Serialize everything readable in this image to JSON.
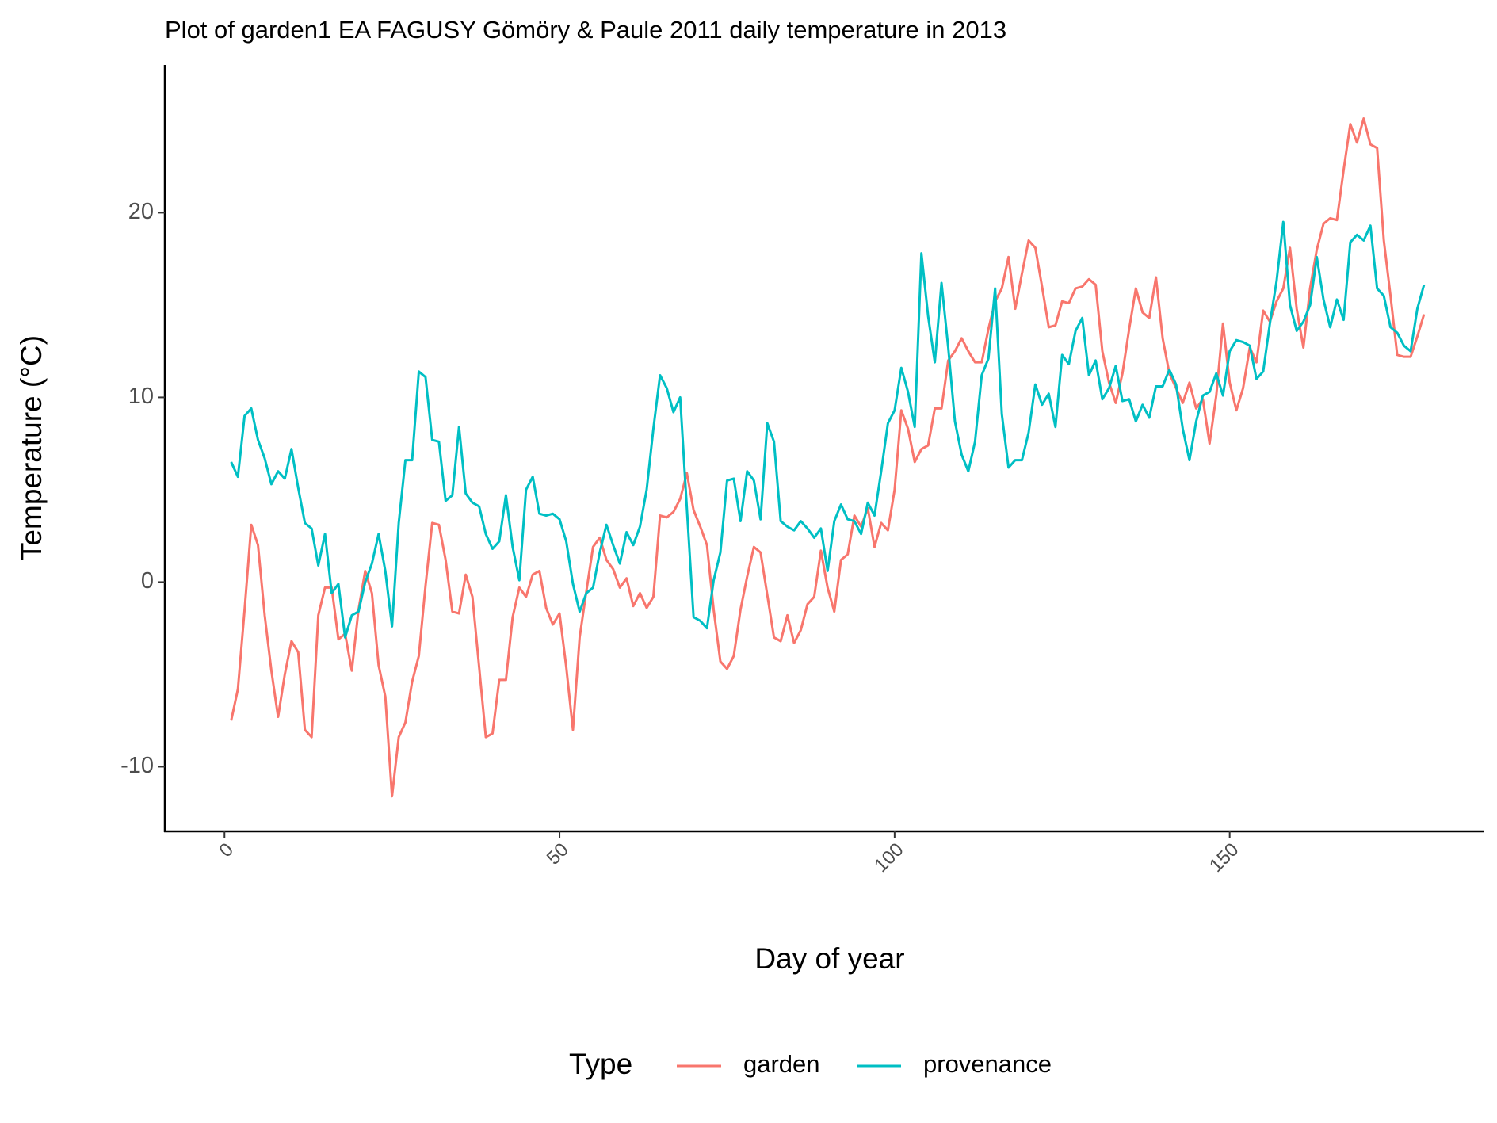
{
  "chart_data": {
    "type": "line",
    "title": "Plot of garden1 EA FAGUSY Gömöry & Paule 2011 daily temperature in 2013",
    "xlabel": "Day of year",
    "ylabel": "Temperature (°C)",
    "legend_title": "Type",
    "legend": "bottom",
    "x": [
      1,
      2,
      3,
      4,
      5,
      6,
      7,
      8,
      9,
      10,
      11,
      12,
      13,
      14,
      15,
      16,
      17,
      18,
      19,
      20,
      21,
      22,
      23,
      24,
      25,
      26,
      27,
      28,
      29,
      30,
      31,
      32,
      33,
      34,
      35,
      36,
      37,
      38,
      39,
      40,
      41,
      42,
      43,
      44,
      45,
      46,
      47,
      48,
      49,
      50,
      51,
      52,
      53,
      54,
      55,
      56,
      57,
      58,
      59,
      60,
      61,
      62,
      63,
      64,
      65,
      66,
      67,
      68,
      69,
      70,
      71,
      72,
      73,
      74,
      75,
      76,
      77,
      78,
      79,
      80,
      81,
      82,
      83,
      84,
      85,
      86,
      87,
      88,
      89,
      90,
      91,
      92,
      93,
      94,
      95,
      96,
      97,
      98,
      99,
      100,
      101,
      102,
      103,
      104,
      105,
      106,
      107,
      108,
      109,
      110,
      111,
      112,
      113,
      114,
      115,
      116,
      117,
      118,
      119,
      120,
      121,
      122,
      123,
      124,
      125,
      126,
      127,
      128,
      129,
      130,
      131,
      132,
      133,
      134,
      135,
      136,
      137,
      138,
      139,
      140,
      141,
      142,
      143,
      144,
      145,
      146,
      147,
      148,
      149,
      150,
      151,
      152,
      153,
      154,
      155,
      156,
      157,
      158,
      159,
      160,
      161,
      162,
      163,
      164,
      165,
      166,
      167,
      168,
      169,
      170,
      171,
      172,
      173,
      174,
      175,
      176,
      177,
      178,
      179
    ],
    "series": [
      {
        "name": "garden",
        "color": "#f8766d",
        "values": [
          -7.5,
          -5.8,
          -1.5,
          3.1,
          2.0,
          -1.8,
          -4.8,
          -7.3,
          -5.0,
          -3.2,
          -3.8,
          -8.0,
          -8.4,
          -1.8,
          -0.3,
          -0.3,
          -3.1,
          -2.8,
          -4.8,
          -1.5,
          0.6,
          -0.6,
          -4.5,
          -6.2,
          -11.6,
          -8.4,
          -7.6,
          -5.4,
          -4.0,
          -0.2,
          3.2,
          3.1,
          1.2,
          -1.6,
          -1.7,
          0.4,
          -0.8,
          -4.6,
          -8.4,
          -8.2,
          -5.3,
          -5.3,
          -1.9,
          -0.3,
          -0.8,
          0.4,
          0.6,
          -1.4,
          -2.3,
          -1.7,
          -4.6,
          -8.0,
          -3.0,
          -0.5,
          1.9,
          2.4,
          1.2,
          0.7,
          -0.3,
          0.2,
          -1.3,
          -0.6,
          -1.4,
          -0.8,
          3.6,
          3.5,
          3.8,
          4.5,
          5.9,
          3.9,
          3.0,
          2.0,
          -1.5,
          -4.3,
          -4.7,
          -4.0,
          -1.5,
          0.3,
          1.9,
          1.6,
          -0.7,
          -3.0,
          -3.2,
          -1.8,
          -3.3,
          -2.6,
          -1.2,
          -0.8,
          1.7,
          -0.3,
          -1.6,
          1.2,
          1.5,
          3.6,
          3.0,
          4.0,
          1.9,
          3.2,
          2.8,
          5.0,
          9.3,
          8.3,
          6.5,
          7.2,
          7.4,
          9.4,
          9.4,
          12.0,
          12.5,
          13.2,
          12.5,
          11.9,
          11.9,
          13.7,
          15.2,
          15.9,
          17.6,
          14.8,
          16.7,
          18.5,
          18.1,
          16.0,
          13.8,
          13.9,
          15.2,
          15.1,
          15.9,
          16.0,
          16.4,
          16.1,
          12.5,
          10.8,
          9.7,
          11.3,
          13.7,
          15.9,
          14.6,
          14.3,
          16.5,
          13.2,
          11.3,
          10.5,
          9.7,
          10.8,
          9.4,
          9.9,
          7.5,
          10.1,
          14.0,
          10.8,
          9.3,
          10.5,
          12.7,
          11.9,
          14.7,
          14.1,
          15.2,
          15.9,
          18.1,
          14.8,
          12.7,
          15.9,
          18.0,
          19.4,
          19.7,
          19.6,
          22.3,
          24.8,
          23.8,
          25.1,
          23.7,
          23.5,
          18.5,
          15.5,
          12.3,
          12.2,
          12.2,
          13.3,
          14.5
        ]
      },
      {
        "name": "provenance",
        "color": "#00bfc4",
        "values": [
          6.5,
          5.7,
          9.0,
          9.4,
          7.7,
          6.7,
          5.3,
          6.0,
          5.6,
          7.2,
          5.1,
          3.2,
          2.9,
          0.9,
          2.6,
          -0.6,
          -0.1,
          -3.0,
          -1.8,
          -1.6,
          0.0,
          1.0,
          2.6,
          0.6,
          -2.4,
          3.2,
          6.6,
          6.6,
          11.4,
          11.1,
          7.7,
          7.6,
          4.4,
          4.7,
          8.4,
          4.8,
          4.3,
          4.1,
          2.6,
          1.8,
          2.2,
          4.7,
          1.9,
          0.1,
          5.0,
          5.7,
          3.7,
          3.6,
          3.7,
          3.4,
          2.2,
          -0.1,
          -1.6,
          -0.6,
          -0.3,
          1.6,
          3.1,
          2.0,
          1.0,
          2.7,
          2.0,
          3.0,
          5.0,
          8.3,
          11.2,
          10.5,
          9.2,
          10.0,
          4.0,
          -1.9,
          -2.1,
          -2.5,
          0.1,
          1.6,
          5.5,
          5.6,
          3.3,
          6.0,
          5.5,
          3.4,
          8.6,
          7.6,
          3.3,
          3.0,
          2.8,
          3.3,
          2.9,
          2.4,
          2.9,
          0.6,
          3.3,
          4.2,
          3.4,
          3.3,
          2.6,
          4.3,
          3.6,
          6.0,
          8.6,
          9.3,
          11.6,
          10.3,
          8.4,
          17.8,
          14.4,
          11.9,
          16.2,
          12.7,
          8.7,
          6.9,
          6.0,
          7.6,
          11.2,
          12.1,
          15.9,
          9.1,
          6.2,
          6.6,
          6.6,
          8.1,
          10.7,
          9.6,
          10.2,
          8.4,
          12.3,
          11.8,
          13.6,
          14.3,
          11.2,
          12.0,
          9.9,
          10.5,
          11.7,
          9.8,
          9.9,
          8.7,
          9.6,
          8.9,
          10.6,
          10.6,
          11.5,
          10.7,
          8.3,
          6.6,
          8.7,
          10.1,
          10.3,
          11.3,
          10.1,
          12.5,
          13.1,
          13.0,
          12.8,
          11.0,
          11.4,
          14.0,
          16.3,
          19.5,
          15.0,
          13.6,
          14.1,
          15.0,
          17.6,
          15.3,
          13.8,
          15.3,
          14.2,
          18.4,
          18.8,
          18.5,
          19.3,
          15.9,
          15.5,
          13.8,
          13.5,
          12.8,
          12.5,
          14.8,
          16.1
        ]
      }
    ],
    "xlim": [
      -8.9,
      188
    ],
    "xticks": [
      0,
      50,
      100,
      150
    ],
    "ylim": [
      -13.5,
      28.0
    ],
    "yticks": [
      -10,
      0,
      10,
      20
    ],
    "grid": false
  }
}
